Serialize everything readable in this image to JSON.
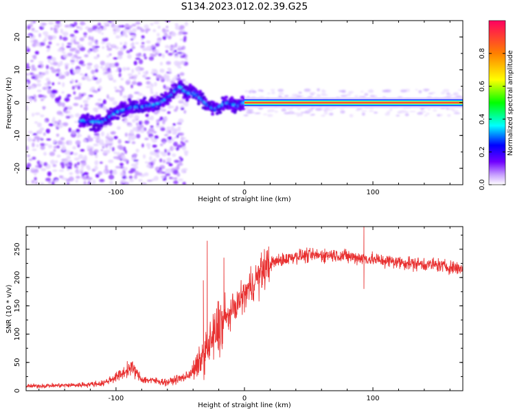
{
  "title": "S134.2023.012.02.39.G25",
  "chart_data": [
    {
      "type": "heatmap",
      "xlabel": "Height of straight line (km)",
      "ylabel": "Frequency (Hz)",
      "xlim": [
        -170,
        170
      ],
      "ylim": [
        -25,
        25
      ],
      "xticks": [
        -100,
        0,
        100
      ],
      "yticks": [
        -20,
        -10,
        0,
        10,
        20
      ],
      "colorbar": {
        "label": "Normalized spectral amplitude",
        "range": [
          0,
          1
        ],
        "ticks": [
          0.0,
          0.2,
          0.4,
          0.6,
          0.8
        ],
        "colormap": [
          "#ffffff",
          "#c8a0ff",
          "#7000ff",
          "#0000ff",
          "#00ffff",
          "#00ff00",
          "#ffff00",
          "#ff8000",
          "#ff0060"
        ]
      },
      "ridge": [
        {
          "x": -125,
          "y": -5.5
        },
        {
          "x": -110,
          "y": -6
        },
        {
          "x": -100,
          "y": -3
        },
        {
          "x": -88,
          "y": -1.5
        },
        {
          "x": -75,
          "y": -1
        },
        {
          "x": -65,
          "y": 0
        },
        {
          "x": -58,
          "y": 2
        },
        {
          "x": -50,
          "y": 5
        },
        {
          "x": -45,
          "y": 3
        },
        {
          "x": -40,
          "y": 3
        },
        {
          "x": -33,
          "y": 1
        },
        {
          "x": -28,
          "y": -1
        },
        {
          "x": -22,
          "y": -2
        },
        {
          "x": -15,
          "y": 0
        },
        {
          "x": -5,
          "y": -1
        },
        {
          "x": 0,
          "y": 0
        },
        {
          "x": 170,
          "y": 0
        }
      ]
    },
    {
      "type": "line",
      "xlabel": "Height of straight line (km)",
      "ylabel": "SNR (10 * v/v)",
      "xlim": [
        -170,
        170
      ],
      "ylim": [
        0,
        290
      ],
      "xticks": [
        -100,
        0,
        100
      ],
      "yticks": [
        0,
        50,
        100,
        150,
        200,
        250
      ],
      "color": "#e83030",
      "trend": [
        {
          "x": -170,
          "y": 8
        },
        {
          "x": -130,
          "y": 10
        },
        {
          "x": -110,
          "y": 13
        },
        {
          "x": -95,
          "y": 30
        },
        {
          "x": -88,
          "y": 42
        },
        {
          "x": -80,
          "y": 20
        },
        {
          "x": -60,
          "y": 15
        },
        {
          "x": -45,
          "y": 25
        },
        {
          "x": -38,
          "y": 40
        },
        {
          "x": -30,
          "y": 70
        },
        {
          "x": -20,
          "y": 110
        },
        {
          "x": -10,
          "y": 140
        },
        {
          "x": 0,
          "y": 170
        },
        {
          "x": 10,
          "y": 200
        },
        {
          "x": 20,
          "y": 225
        },
        {
          "x": 40,
          "y": 238
        },
        {
          "x": 70,
          "y": 240
        },
        {
          "x": 100,
          "y": 232
        },
        {
          "x": 130,
          "y": 225
        },
        {
          "x": 150,
          "y": 222
        },
        {
          "x": 170,
          "y": 215
        }
      ],
      "spikes": [
        {
          "x": -37,
          "y": 25
        },
        {
          "x": -32,
          "y": 195
        },
        {
          "x": -29,
          "y": 265
        },
        {
          "x": -16,
          "y": 235
        },
        {
          "x": 93,
          "y": 290
        },
        {
          "x": 93,
          "y": 180
        }
      ]
    }
  ]
}
